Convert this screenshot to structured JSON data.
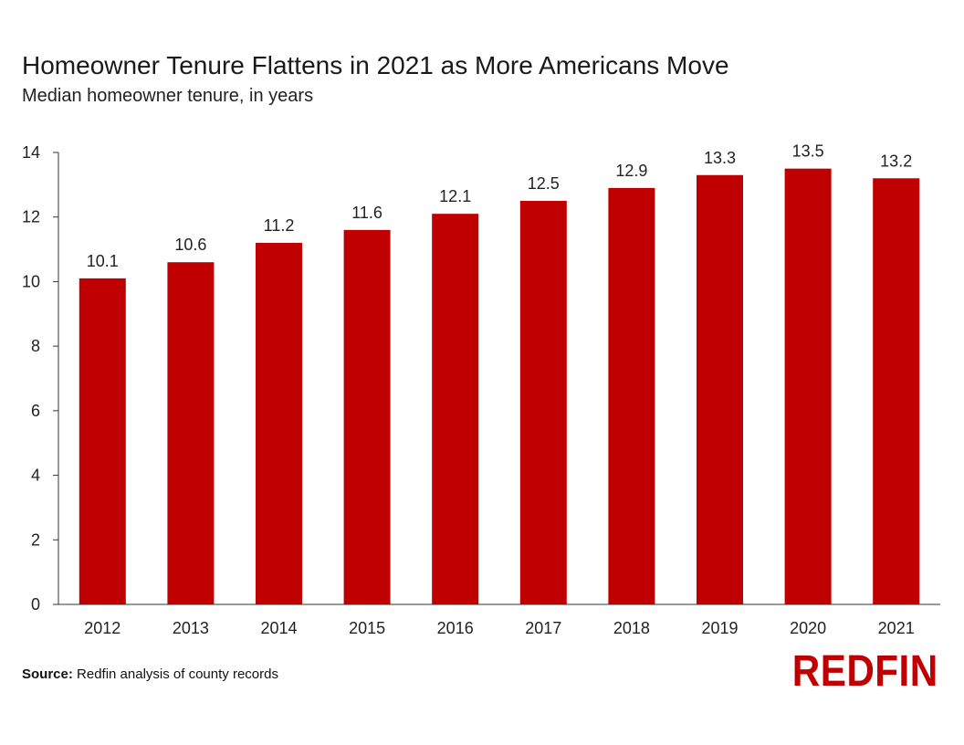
{
  "chart_data": {
    "type": "bar",
    "title": "Homeowner Tenure Flattens in 2021 as More Americans Move",
    "subtitle": "Median homeowner tenure, in years",
    "categories": [
      "2012",
      "2013",
      "2014",
      "2015",
      "2016",
      "2017",
      "2018",
      "2019",
      "2020",
      "2021"
    ],
    "values": [
      10.1,
      10.6,
      11.2,
      11.6,
      12.1,
      12.5,
      12.9,
      13.3,
      13.5,
      13.2
    ],
    "data_labels": [
      "10.1",
      "10.6",
      "11.2",
      "11.6",
      "12.1",
      "12.5",
      "12.9",
      "13.3",
      "13.5",
      "13.2"
    ],
    "ylim": [
      0,
      14
    ],
    "yticks": [
      0,
      2,
      4,
      6,
      8,
      10,
      12,
      14
    ],
    "ytick_labels": [
      "0",
      "2",
      "4",
      "6",
      "8",
      "10",
      "12",
      "14"
    ],
    "grid": false,
    "bar_color": "#c00000"
  },
  "source": {
    "label": "Source:",
    "text": " Redfin analysis of county records"
  },
  "logo": {
    "text": "REDFIN",
    "color": "#c00000"
  }
}
